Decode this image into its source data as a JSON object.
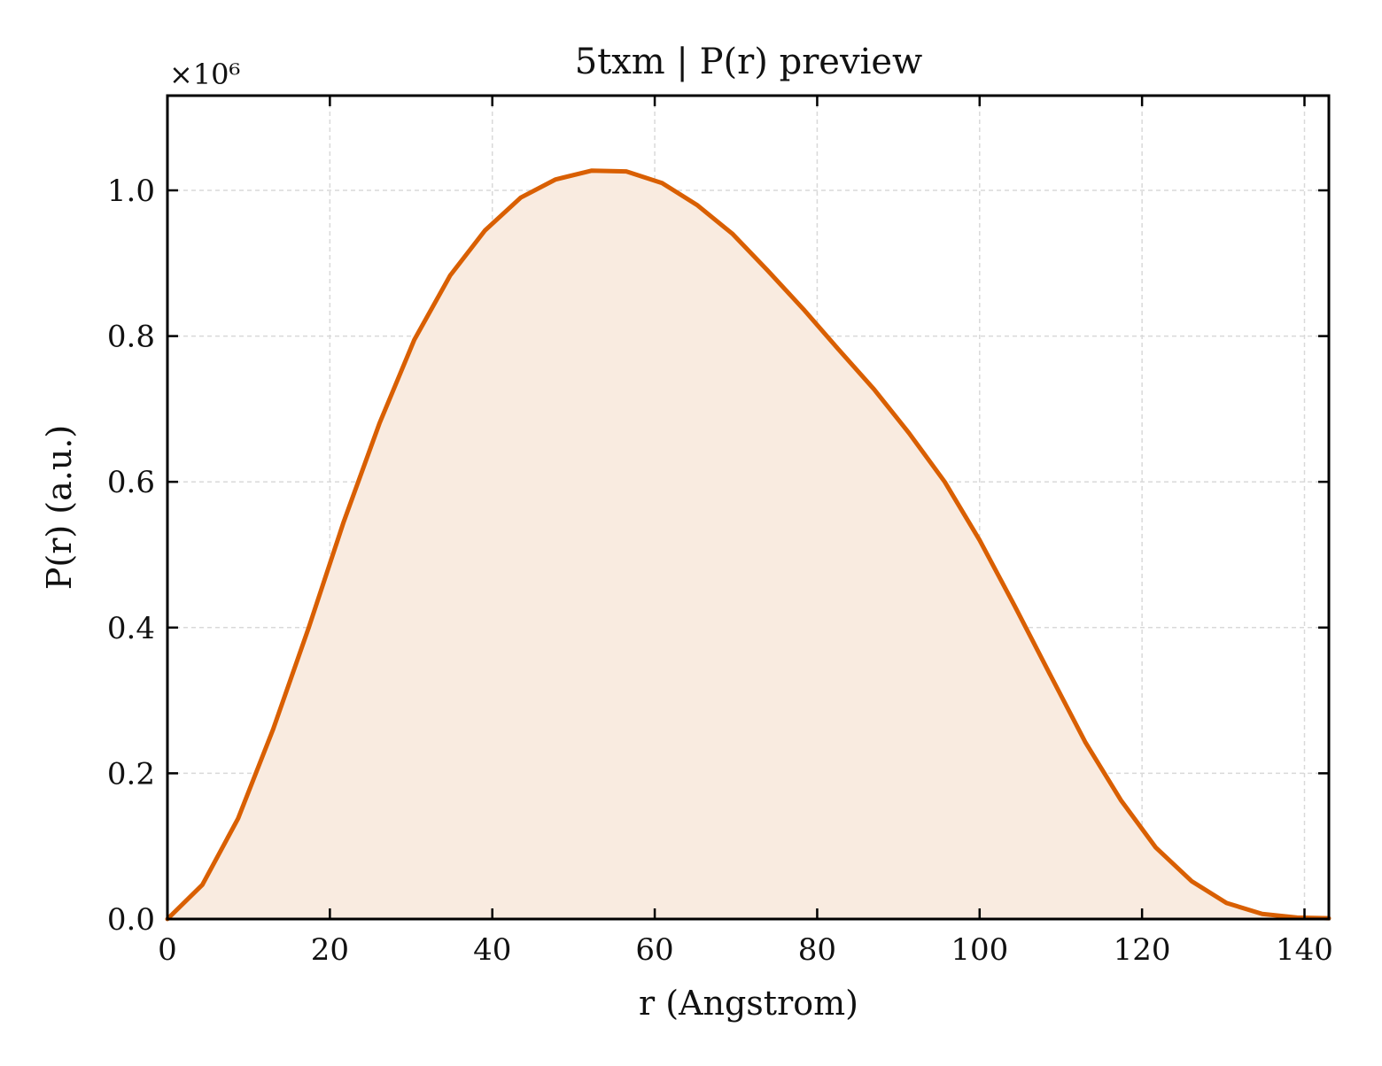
{
  "chart_data": {
    "type": "area",
    "title": "5txm | P(r) preview",
    "xlabel": "r (Angstrom)",
    "ylabel": "P(r) (a.u.)",
    "y_offset_label": "×10⁶",
    "xlim": [
      0,
      143
    ],
    "ylim": [
      0,
      1.13
    ],
    "x_ticks": [
      0,
      20,
      40,
      60,
      80,
      100,
      120,
      140
    ],
    "x_tick_labels": [
      "0",
      "20",
      "40",
      "60",
      "80",
      "100",
      "120",
      "140"
    ],
    "y_ticks": [
      0,
      0.2,
      0.4,
      0.6,
      0.8,
      1.0
    ],
    "y_tick_labels": [
      "0.0",
      "0.2",
      "0.4",
      "0.6",
      "0.8",
      "1.0"
    ],
    "grid": true,
    "legend": "none",
    "series": [
      {
        "color": "#d95f02",
        "fill_color": "#f9ebe0",
        "x": [
          0,
          4.3,
          8.7,
          13.0,
          17.4,
          21.7,
          26.1,
          30.4,
          34.8,
          39.1,
          43.5,
          47.8,
          52.2,
          56.5,
          60.9,
          65.2,
          69.6,
          73.9,
          78.3,
          82.6,
          87.0,
          91.3,
          95.7,
          100.0,
          104.3,
          108.7,
          113.0,
          117.4,
          121.7,
          126.1,
          130.4,
          134.8,
          139.1,
          143.0
        ],
        "y": [
          0.0,
          0.047,
          0.138,
          0.26,
          0.4,
          0.545,
          0.68,
          0.795,
          0.883,
          0.945,
          0.99,
          1.015,
          1.027,
          1.026,
          1.01,
          0.98,
          0.94,
          0.89,
          0.837,
          0.782,
          0.727,
          0.667,
          0.6,
          0.52,
          0.43,
          0.335,
          0.243,
          0.163,
          0.098,
          0.052,
          0.022,
          0.007,
          0.002,
          0.001
        ]
      }
    ]
  }
}
